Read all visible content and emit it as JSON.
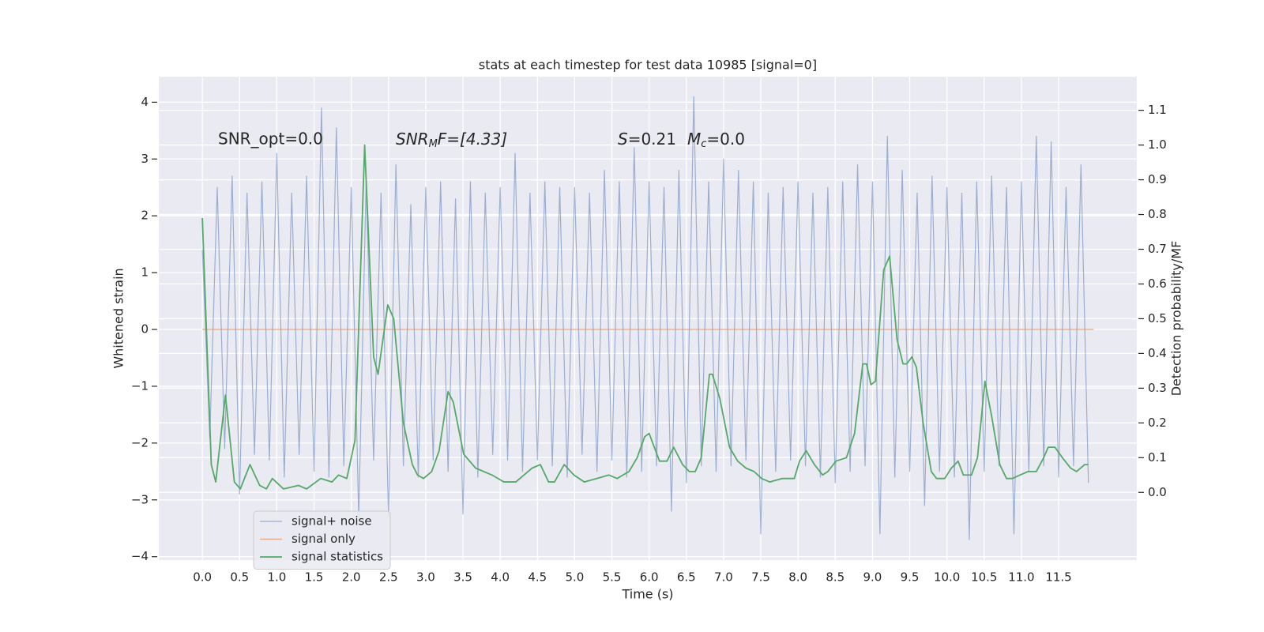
{
  "chart_data": {
    "type": "line",
    "title": "stats at each timestep for test data 10985 [signal=0]",
    "xlabel": "Time (s)",
    "ylabel": "Whitened strain",
    "y2label": "Detection probability/MF",
    "annotations": [
      "SNR_opt=0.0",
      [
        "SNR",
        "M",
        "F=[4.33]"
      ],
      [
        "S",
        "=0.21",
        "M",
        "c",
        "=0.0"
      ]
    ],
    "xlim": [
      -0.585,
      12.55
    ],
    "ylim": [
      -4.06,
      4.45
    ],
    "y2lim": [
      -0.195,
      1.197
    ],
    "xticks": [
      {
        "value": 0,
        "label": "0.0"
      },
      0.5,
      {
        "value": 1,
        "label": "1.0"
      },
      1.5,
      {
        "value": 2,
        "label": "2.0"
      },
      2.5,
      {
        "value": 3,
        "label": "3.0"
      },
      3.5,
      {
        "value": 4,
        "label": "4.0"
      },
      4.5,
      {
        "value": 5,
        "label": "5.0"
      },
      5.5,
      {
        "value": 6,
        "label": "6.0"
      },
      6.5,
      {
        "value": 7,
        "label": "7.0"
      },
      7.5,
      {
        "value": 8,
        "label": "8.0"
      },
      8.5,
      {
        "value": 9,
        "label": "9.0"
      },
      9.5,
      {
        "value": 10,
        "label": "10.0"
      },
      10.5,
      {
        "value": 11,
        "label": "11.0"
      },
      11.5
    ],
    "yticks": [
      {
        "value": -4,
        "label": "−4"
      },
      {
        "value": -3,
        "label": "−3"
      },
      {
        "value": -2,
        "label": "−2"
      },
      {
        "value": -1,
        "label": "−1"
      },
      0,
      1,
      2,
      3,
      4
    ],
    "y2ticks": [
      {
        "value": 0,
        "label": "0.0"
      },
      0.1,
      0.2,
      0.3,
      0.4,
      0.5,
      0.6,
      0.7,
      0.8,
      0.9,
      {
        "value": 1,
        "label": "1.0"
      },
      1.1
    ],
    "grid": true,
    "legend": "lower left",
    "series": [
      {
        "name": "signal+ noise",
        "color": "#4c72b0",
        "axis": "y",
        "x": [
          0.0,
          0.1,
          0.2,
          0.3,
          0.4,
          0.5,
          0.6,
          0.7,
          0.8,
          0.9,
          1.0,
          1.1,
          1.2,
          1.3,
          1.4,
          1.5,
          1.6,
          1.7,
          1.8,
          1.9,
          2.0,
          2.1,
          2.2,
          2.3,
          2.4,
          2.5,
          2.6,
          2.7,
          2.8,
          2.9,
          3.0,
          3.1,
          3.2,
          3.3,
          3.4,
          3.5,
          3.6,
          3.7,
          3.8,
          3.9,
          4.0,
          4.1,
          4.2,
          4.3,
          4.4,
          4.5,
          4.6,
          4.7,
          4.8,
          4.9,
          5.0,
          5.1,
          5.2,
          5.3,
          5.4,
          5.5,
          5.6,
          5.7,
          5.8,
          5.9,
          6.0,
          6.1,
          6.2,
          6.3,
          6.4,
          6.5,
          6.6,
          6.7,
          6.8,
          6.9,
          7.0,
          7.1,
          7.2,
          7.3,
          7.4,
          7.5,
          7.6,
          7.7,
          7.8,
          7.9,
          8.0,
          8.1,
          8.2,
          8.3,
          8.4,
          8.5,
          8.6,
          8.7,
          8.8,
          8.9,
          9.0,
          9.1,
          9.2,
          9.3,
          9.4,
          9.5,
          9.6,
          9.7,
          9.8,
          9.9,
          10.0,
          10.1,
          10.2,
          10.3,
          10.4,
          10.5,
          10.6,
          10.7,
          10.8,
          10.9,
          11.0,
          11.1,
          11.2,
          11.3,
          11.4,
          11.5,
          11.6,
          11.7,
          11.8,
          11.9
        ],
        "values": [
          1.4,
          -1.9,
          2.5,
          -2.1,
          2.7,
          -2.9,
          2.4,
          -2.2,
          2.6,
          -2.3,
          3.1,
          -2.6,
          2.4,
          -2.2,
          2.7,
          -2.5,
          3.9,
          -2.6,
          3.55,
          -2.4,
          2.5,
          -3.3,
          2.6,
          -2.3,
          2.4,
          -3.3,
          2.9,
          -2.4,
          2.2,
          -2.6,
          2.5,
          -2.3,
          2.6,
          -2.5,
          2.3,
          -3.25,
          2.6,
          -2.6,
          2.4,
          -2.2,
          2.5,
          -2.3,
          3.1,
          -2.5,
          2.4,
          -2.3,
          2.6,
          -2.4,
          2.5,
          -2.6,
          2.5,
          -2.2,
          2.4,
          -2.5,
          2.8,
          -2.3,
          2.6,
          -2.6,
          3.2,
          -2.5,
          2.6,
          -2.4,
          2.5,
          -3.2,
          2.8,
          -2.7,
          4.1,
          -2.4,
          2.6,
          -2.5,
          3.0,
          -2.4,
          2.8,
          -2.3,
          2.6,
          -3.6,
          2.4,
          -2.5,
          2.5,
          -2.3,
          2.6,
          -2.4,
          2.4,
          -2.6,
          2.5,
          -2.7,
          2.6,
          -2.5,
          2.9,
          -2.4,
          2.6,
          -3.6,
          3.4,
          -2.6,
          2.8,
          -2.5,
          2.4,
          -3.1,
          2.7,
          -2.5,
          2.5,
          -2.6,
          2.4,
          -3.7,
          2.6,
          -2.5,
          2.7,
          -2.4,
          2.5,
          -3.6,
          2.6,
          -2.5,
          3.4,
          -2.4,
          3.3,
          -2.6,
          2.5,
          -2.4,
          2.9,
          -2.7
        ]
      },
      {
        "name": "signal only",
        "color": "#dd8452",
        "axis": "y",
        "x": [
          0.0,
          11.97
        ],
        "values": [
          0,
          0
        ]
      },
      {
        "name": "signal statistics",
        "color": "#55a868",
        "axis": "y2",
        "x": [
          0.0,
          0.12,
          0.18,
          0.31,
          0.43,
          0.51,
          0.64,
          0.77,
          0.86,
          0.94,
          1.09,
          1.29,
          1.4,
          1.59,
          1.74,
          1.83,
          1.94,
          2.05,
          2.18,
          2.3,
          2.36,
          2.49,
          2.57,
          2.7,
          2.82,
          2.89,
          2.97,
          3.08,
          3.18,
          3.3,
          3.37,
          3.51,
          3.67,
          3.89,
          4.05,
          4.21,
          4.43,
          4.54,
          4.65,
          4.73,
          4.86,
          4.99,
          5.13,
          5.3,
          5.46,
          5.57,
          5.73,
          5.84,
          5.94,
          6.0,
          6.14,
          6.24,
          6.33,
          6.45,
          6.54,
          6.62,
          6.7,
          6.81,
          6.85,
          6.95,
          7.08,
          7.19,
          7.3,
          7.41,
          7.51,
          7.62,
          7.79,
          7.95,
          8.02,
          8.11,
          8.22,
          8.33,
          8.4,
          8.51,
          8.65,
          8.76,
          8.87,
          8.92,
          8.98,
          9.04,
          9.15,
          9.23,
          9.33,
          9.41,
          9.46,
          9.53,
          9.59,
          9.68,
          9.79,
          9.86,
          9.97,
          10.06,
          10.15,
          10.22,
          10.33,
          10.41,
          10.51,
          10.6,
          10.71,
          10.8,
          10.88,
          10.98,
          11.09,
          11.2,
          11.3,
          11.36,
          11.45,
          11.55,
          11.66,
          11.74,
          11.85,
          11.9
        ],
        "values": [
          0.79,
          0.08,
          0.03,
          0.28,
          0.03,
          0.01,
          0.08,
          0.02,
          0.01,
          0.04,
          0.01,
          0.02,
          0.01,
          0.04,
          0.03,
          0.05,
          0.04,
          0.15,
          1.0,
          0.39,
          0.34,
          0.54,
          0.5,
          0.2,
          0.08,
          0.05,
          0.04,
          0.06,
          0.12,
          0.29,
          0.26,
          0.11,
          0.07,
          0.05,
          0.03,
          0.03,
          0.07,
          0.08,
          0.03,
          0.03,
          0.08,
          0.05,
          0.03,
          0.04,
          0.05,
          0.04,
          0.06,
          0.1,
          0.16,
          0.17,
          0.09,
          0.09,
          0.13,
          0.08,
          0.06,
          0.06,
          0.1,
          0.34,
          0.34,
          0.27,
          0.13,
          0.09,
          0.07,
          0.06,
          0.04,
          0.03,
          0.04,
          0.04,
          0.09,
          0.12,
          0.08,
          0.05,
          0.06,
          0.09,
          0.1,
          0.17,
          0.37,
          0.37,
          0.31,
          0.32,
          0.64,
          0.68,
          0.44,
          0.37,
          0.37,
          0.39,
          0.36,
          0.2,
          0.06,
          0.04,
          0.04,
          0.07,
          0.09,
          0.05,
          0.05,
          0.1,
          0.32,
          0.22,
          0.08,
          0.04,
          0.04,
          0.05,
          0.06,
          0.06,
          0.1,
          0.13,
          0.13,
          0.1,
          0.07,
          0.06,
          0.08,
          0.08
        ]
      }
    ]
  }
}
